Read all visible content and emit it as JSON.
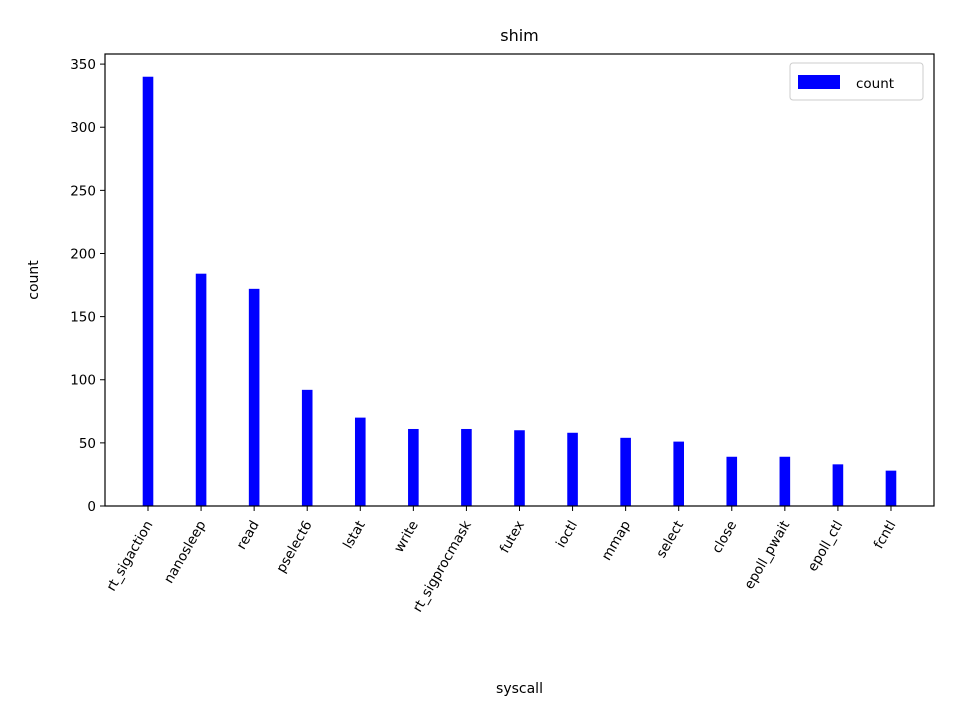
{
  "chart_data": {
    "type": "bar",
    "title": "shim",
    "xlabel": "syscall",
    "ylabel": "count",
    "ylim": [
      0,
      358
    ],
    "yticks": [
      0,
      50,
      100,
      150,
      200,
      250,
      300,
      350
    ],
    "categories": [
      "rt_sigaction",
      "nanosleep",
      "read",
      "pselect6",
      "lstat",
      "write",
      "rt_sigprocmask",
      "futex",
      "ioctl",
      "mmap",
      "select",
      "close",
      "epoll_pwait",
      "epoll_ctl",
      "fcntl"
    ],
    "series": [
      {
        "name": "count",
        "color": "#0000ff",
        "values": [
          340,
          184,
          172,
          92,
          70,
          61,
          61,
          60,
          58,
          54,
          51,
          39,
          39,
          33,
          28
        ]
      }
    ],
    "legend_position": "top-right",
    "grid": false,
    "tick_label_rotation": -60
  }
}
